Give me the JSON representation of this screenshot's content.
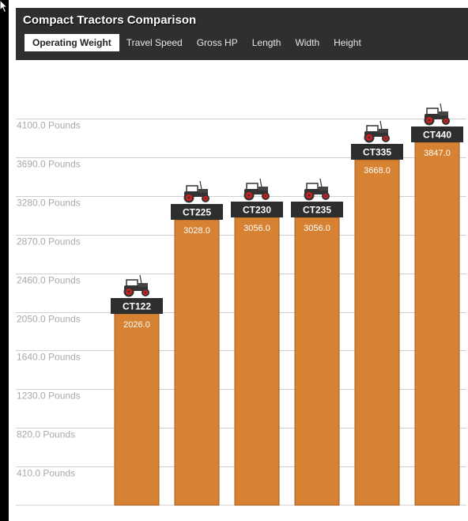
{
  "header": {
    "title": "Compact Tractors Comparison",
    "tabs": [
      "Operating Weight",
      "Travel Speed",
      "Gross HP",
      "Length",
      "Width",
      "Height"
    ],
    "active_tab": 0
  },
  "colors": {
    "bar": "#d68232",
    "bar_border": "#a35e1f",
    "label_bg": "#2e2e2e",
    "grid": "#cfcfcf",
    "header_bg": "#2f2f2f"
  },
  "icons": {
    "tractor": "tractor-icon"
  },
  "chart_data": {
    "type": "bar",
    "title": "Compact Tractors Comparison",
    "categories": [
      "CT122",
      "CT225",
      "CT230",
      "CT235",
      "CT335",
      "CT440"
    ],
    "values": [
      2026.0,
      3028.0,
      3056.0,
      3056.0,
      3668.0,
      3847.0
    ],
    "value_labels": [
      "2026.0",
      "3028.0",
      "3056.0",
      "3056.0",
      "3668.0",
      "3847.0"
    ],
    "yticks": [
      410,
      820,
      1230,
      1640,
      2050,
      2460,
      2870,
      3280,
      3690,
      4100
    ],
    "ytick_labels": [
      "410.0 Pounds",
      "820.0 Pounds",
      "1230.0 Pounds",
      "1640.0 Pounds",
      "2050.0 Pounds",
      "2460.0 Pounds",
      "2870.0 Pounds",
      "3280.0 Pounds",
      "3690.0 Pounds",
      "4100.0 Pounds"
    ],
    "ylim": [
      0,
      4100
    ],
    "xlabel": "",
    "ylabel": "",
    "grid": true,
    "legend": "none"
  }
}
